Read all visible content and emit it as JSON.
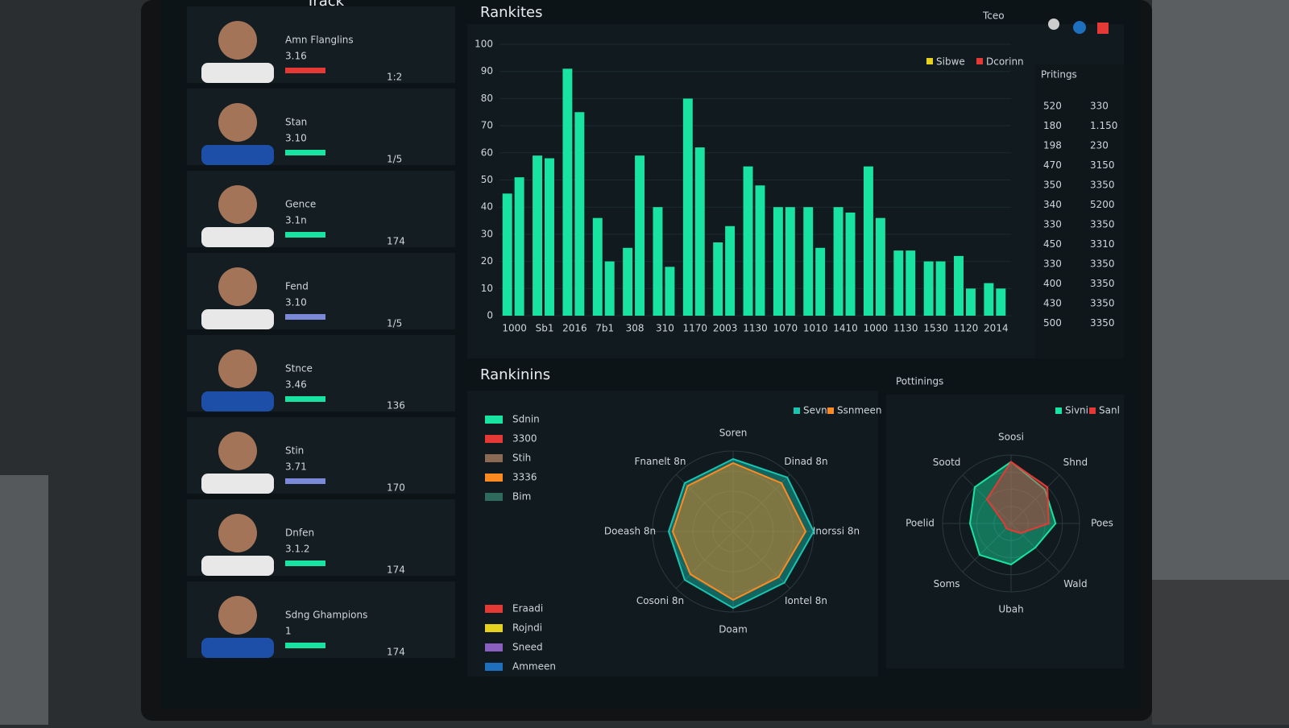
{
  "header": {
    "top_partial": "Track",
    "title": "Rankites",
    "user": "Tceo"
  },
  "players": [
    {
      "name": "Amn Flanglins",
      "rating": "3.16",
      "score": "1:2"
    },
    {
      "name": "Stan",
      "rating": "3.10",
      "score": "1/5"
    },
    {
      "name": "Gence",
      "rating": "3.1n",
      "score": "174"
    },
    {
      "name": "Fend",
      "rating": "3.10",
      "score": "1/5"
    },
    {
      "name": "Stnce",
      "rating": "3.46",
      "score": "136"
    },
    {
      "name": "Stin",
      "rating": "3.71",
      "score": "170"
    },
    {
      "name": "Dnfen",
      "rating": "3.1.2",
      "score": "174"
    },
    {
      "name": "Sdng Ghampions",
      "rating": "1",
      "score": "174"
    }
  ],
  "bar_chart": {
    "type": "bar",
    "bar_color": "#19e3a0",
    "categories": [
      "1000",
      "Sb1",
      "2016",
      "7b1",
      "308",
      "310",
      "1170",
      "2003",
      "1130",
      "1070",
      "1010",
      "1410",
      "1000",
      "1130",
      "1530",
      "1120",
      "2014"
    ],
    "series": [
      {
        "name": "Sibwe",
        "color": "#e5d21f",
        "values": [
          45,
          59,
          91,
          36,
          25,
          40,
          80,
          27,
          55,
          40,
          40,
          40,
          55,
          24,
          20,
          22,
          12
        ]
      },
      {
        "name": "Dcorinn",
        "color": "#e53935",
        "values": [
          51,
          58,
          75,
          20,
          59,
          18,
          62,
          33,
          48,
          40,
          25,
          38,
          36,
          24,
          20,
          10,
          10
        ]
      }
    ],
    "ylim": [
      0,
      100
    ],
    "yticks": [
      0,
      10,
      20,
      30,
      40,
      50,
      60,
      70,
      80,
      90,
      100
    ],
    "grid": true
  },
  "table": {
    "title": "Pritings",
    "rows": [
      [
        "520",
        "330"
      ],
      [
        "180",
        "1.150"
      ],
      [
        "198",
        "230"
      ],
      [
        "470",
        "3150"
      ],
      [
        "350",
        "3350"
      ],
      [
        "340",
        "5200"
      ],
      [
        "330",
        "3350"
      ],
      [
        "450",
        "3310"
      ],
      [
        "330",
        "3350"
      ],
      [
        "400",
        "3350"
      ],
      [
        "430",
        "3350"
      ],
      [
        "500",
        "3350"
      ]
    ]
  },
  "radar1": {
    "type": "radar",
    "title": "Rankinins",
    "legend_left": [
      {
        "name": "Sdnin",
        "color": "#19e3a0"
      },
      {
        "name": "3300",
        "color": "#e53935"
      },
      {
        "name": "Stih",
        "color": "#8a6a55"
      },
      {
        "name": "3336",
        "color": "#ff8a1f"
      },
      {
        "name": "Bim",
        "color": "#2e6b5c"
      }
    ],
    "legend_bottom": [
      {
        "name": "Eraadi",
        "color": "#e53935"
      },
      {
        "name": "Rojndi",
        "color": "#e5d21f"
      },
      {
        "name": "Sneed",
        "color": "#8a5fc0"
      },
      {
        "name": "Ammeen",
        "color": "#1f6fbf"
      }
    ],
    "axes": [
      "Soren",
      "Dinad 8n",
      "Inorssi 8n",
      "Iontel 8n",
      "Doam",
      "Cosoni 8n",
      "Doeash 8n",
      "Fnanelt 8n"
    ],
    "rlim": [
      0,
      100
    ],
    "series": [
      {
        "name": "Sevn",
        "color": "#19c4b0",
        "values": [
          90,
          95,
          100,
          90,
          95,
          85,
          80,
          85
        ]
      },
      {
        "name": "Ssnmeen",
        "color": "#ff8a1f",
        "values": [
          85,
          85,
          90,
          80,
          85,
          75,
          75,
          80
        ]
      }
    ]
  },
  "radar2": {
    "type": "radar",
    "title": "Pottinings",
    "axes": [
      "Soosi",
      "Shnd",
      "Poes",
      "Wald",
      "Ubah",
      "Soms",
      "Poelid",
      "Sootd"
    ],
    "rlim": [
      0,
      100
    ],
    "series": [
      {
        "name": "Sivni",
        "color": "#19e3a0",
        "values": [
          90,
          70,
          65,
          50,
          60,
          65,
          60,
          75
        ]
      },
      {
        "name": "Sanl",
        "color": "#e53935",
        "values": [
          90,
          75,
          55,
          20,
          10,
          10,
          10,
          50
        ]
      }
    ]
  }
}
